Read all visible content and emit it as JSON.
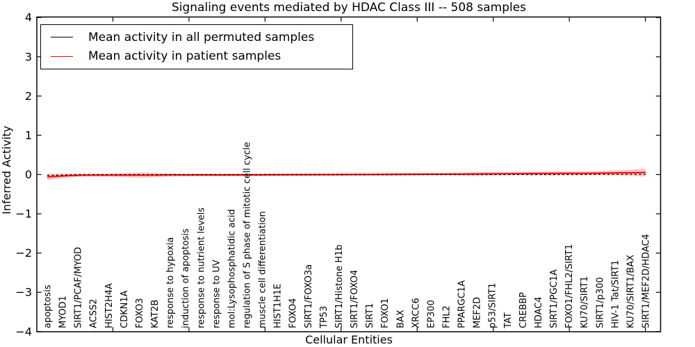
{
  "chart_data": {
    "type": "line",
    "title": "Signaling events mediated by HDAC Class III -- 508 samples",
    "xlabel": "Cellular Entities",
    "ylabel": "Inferred Activity",
    "ylim": [
      -4,
      4
    ],
    "yticks": [
      4,
      3,
      2,
      1,
      0,
      -1,
      -2,
      -3,
      -4
    ],
    "xticks": [
      5,
      10,
      15,
      20,
      25,
      30,
      35,
      40
    ],
    "grid": false,
    "legend_position": "upper left",
    "categories": [
      "apoptosis",
      "MYOD1",
      "SIRT1/PCAF/MYOD",
      "ACSS2",
      "HIST2H4A",
      "CDKN1A",
      "FOXO3",
      "KAT2B",
      "response to hypoxia",
      "induction of apoptosis",
      "response to nutrient levels",
      "response to UV",
      "mol:Lysophosphatidic acid",
      "regulation of S phase of mitotic cell cycle",
      "muscle cell differentiation",
      "HIST1H1E",
      "FOXO4",
      "SIRT1/FOXO3a",
      "TP53",
      "SIRT1/Histone H1b",
      "SIRT1/FOXO4",
      "SIRT1",
      "FOXO1",
      "BAX",
      "XRCC6",
      "EP300",
      "FHL2",
      "PPARGC1A",
      "MEF2D",
      "p53/SIRT1",
      "TAT",
      "CREBBP",
      "HDAC4",
      "SIRT1/PGC1A",
      "FOXO1/FHL2/SIRT1",
      "KU70/SIRT1",
      "SIRT1/p300",
      "HIV-1 Tat/SIRT1",
      "KU70/SIRT1/BAX",
      "SIRT1/MEF2D/HDAC4"
    ],
    "series": [
      {
        "name": "Mean activity in all permuted samples",
        "color": "#000000",
        "style": "dashed",
        "values": [
          -0.02,
          -0.01,
          0,
          0,
          0,
          0,
          0,
          0,
          0,
          0,
          0,
          0,
          0,
          0,
          0,
          0,
          0,
          0,
          0,
          0,
          0,
          0,
          0,
          0,
          0,
          0,
          0,
          0,
          0,
          0,
          0,
          0,
          0,
          0,
          0,
          0,
          0.005,
          0.005,
          0.005,
          0.005
        ]
      },
      {
        "name": "Mean activity in patient samples",
        "color": "#ff0000",
        "style": "solid",
        "values": [
          -0.06,
          -0.035,
          -0.02,
          -0.015,
          -0.015,
          -0.015,
          -0.015,
          -0.015,
          -0.012,
          -0.012,
          -0.01,
          -0.01,
          -0.01,
          -0.008,
          -0.008,
          -0.006,
          -0.005,
          -0.004,
          -0.003,
          -0.002,
          0,
          0,
          0.002,
          0.004,
          0.006,
          0.008,
          0.01,
          0.012,
          0.015,
          0.018,
          0.02,
          0.022,
          0.025,
          0.028,
          0.03,
          0.032,
          0.035,
          0.04,
          0.045,
          0.05
        ],
        "band_halfwidth": [
          0.085,
          0.055,
          0.04,
          0.035,
          0.04,
          0.055,
          0.07,
          0.055,
          0.04,
          0.035,
          0.035,
          0.035,
          0.035,
          0.035,
          0.035,
          0.035,
          0.035,
          0.035,
          0.035,
          0.035,
          0.035,
          0.035,
          0.035,
          0.04,
          0.04,
          0.035,
          0.035,
          0.04,
          0.05,
          0.045,
          0.04,
          0.04,
          0.05,
          0.055,
          0.05,
          0.05,
          0.055,
          0.065,
          0.08,
          0.105
        ],
        "band_color": "#ff0000"
      }
    ]
  }
}
